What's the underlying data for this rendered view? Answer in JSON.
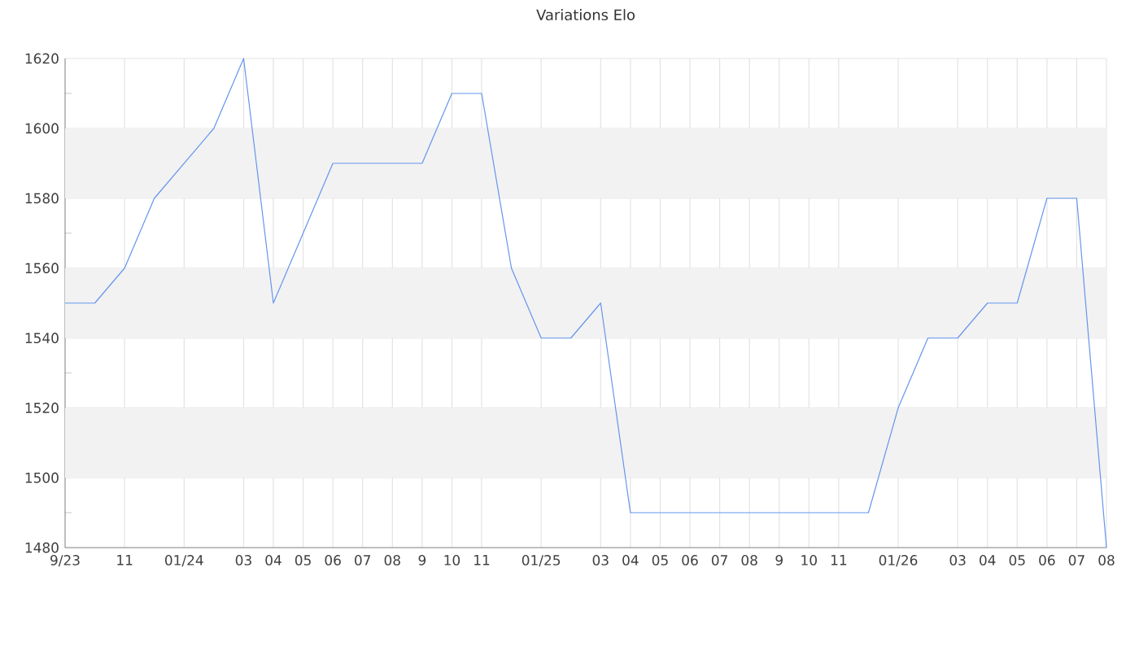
{
  "chart_data": {
    "type": "line",
    "title": "Variations Elo",
    "categories": [
      "9/23",
      null,
      "11",
      null,
      "01/24",
      null,
      "03",
      "04",
      "05",
      "06",
      "07",
      "08",
      "9",
      "10",
      "11",
      null,
      "01/25",
      null,
      "03",
      "04",
      "05",
      "06",
      "07",
      "08",
      "9",
      "10",
      "11",
      null,
      "01/26",
      null,
      "03",
      "04",
      "05",
      "06",
      "07",
      "08"
    ],
    "series": [
      {
        "color": "#6495ed",
        "values": [
          1550,
          1550,
          1560,
          1580,
          1590,
          1600,
          1620,
          1550,
          1570,
          1590,
          1590,
          1590,
          1590,
          1610,
          1610,
          1560,
          1540,
          1540,
          1550,
          1490,
          1490,
          1490,
          1490,
          1490,
          1490,
          1490,
          1490,
          1490,
          1520,
          1540,
          1540,
          1550,
          1550,
          1580,
          1580,
          1480
        ]
      }
    ],
    "ylim": [
      1480,
      1620
    ],
    "yticks": [
      1480,
      1500,
      1520,
      1540,
      1560,
      1580,
      1600,
      1620
    ],
    "bands": [
      {
        "axis": "y",
        "from": 1500,
        "to": 1520,
        "color": "#f2f2f2"
      },
      {
        "axis": "y",
        "from": 1540,
        "to": 1560,
        "color": "#f2f2f2"
      },
      {
        "axis": "y",
        "from": 1580,
        "to": 1600,
        "color": "#f2f2f2"
      }
    ],
    "grid": true,
    "marker": "none",
    "line_style": "solid"
  }
}
